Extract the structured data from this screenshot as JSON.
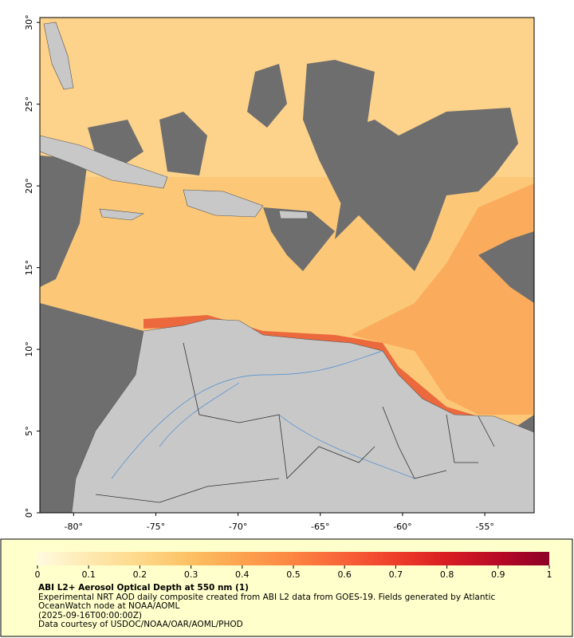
{
  "map": {
    "lon_range": [
      -82.05,
      -52
    ],
    "lat_range": [
      0,
      30.3
    ],
    "lon_ticks": [
      {
        "value": -80,
        "label": "-80°"
      },
      {
        "value": -75,
        "label": "-75°"
      },
      {
        "value": -70,
        "label": "-70°"
      },
      {
        "value": -65,
        "label": "-65°"
      },
      {
        "value": -60,
        "label": "-60°"
      },
      {
        "value": -55,
        "label": "-55°"
      }
    ],
    "lat_ticks": [
      {
        "value": 0,
        "label": "0°"
      },
      {
        "value": 5,
        "label": "5°"
      },
      {
        "value": 10,
        "label": "10°"
      },
      {
        "value": 15,
        "label": "15°"
      },
      {
        "value": 20,
        "label": "20°"
      },
      {
        "value": 25,
        "label": "25°"
      },
      {
        "value": 30,
        "label": "30°"
      }
    ]
  },
  "colorbar": {
    "range": [
      0,
      1
    ],
    "ticks": [
      0,
      0.1,
      0.2,
      0.3,
      0.4,
      0.5,
      0.6,
      0.7,
      0.8,
      0.9,
      1
    ],
    "colors": [
      "#fffbe0",
      "#fee9b0",
      "#fed88a",
      "#fdc062",
      "#fca24e",
      "#fc8542",
      "#f86238",
      "#ee3e2a",
      "#d81c22",
      "#b80a26",
      "#8c0026"
    ]
  },
  "caption": {
    "title": "ABI L2+ Aerosol Optical Depth at 550 nm (1)",
    "description": "Experimental NRT AOD daily composite created from ABI L2 data from GOES-19. Fields generated by Atlantic OceanWatch node at NOAA/AOML",
    "date": "(2025-09-16T00:00:00Z)",
    "credit": "Data courtesy of USDOC/NOAA/OAR/AOML/PHOD"
  }
}
